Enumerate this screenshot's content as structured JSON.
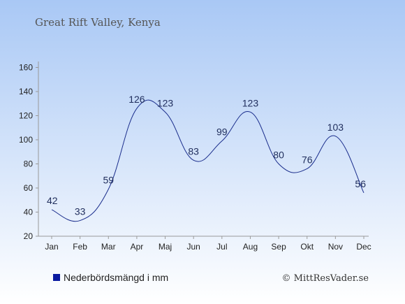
{
  "chart_data": {
    "type": "line",
    "title": "Great Rift Valley, Kenya",
    "categories": [
      "Jan",
      "Feb",
      "Mar",
      "Apr",
      "Maj",
      "Jun",
      "Jul",
      "Aug",
      "Sep",
      "Okt",
      "Nov",
      "Dec"
    ],
    "series": [
      {
        "name": "Nederbördsmängd i mm",
        "values": [
          42,
          33,
          59,
          126,
          123,
          83,
          99,
          123,
          80,
          76,
          103,
          56
        ]
      }
    ],
    "data_labels": [
      "42",
      "33",
      "59",
      "126",
      "123",
      "83",
      "99",
      "123",
      "80",
      "76",
      "103",
      "56"
    ],
    "ylim": [
      20,
      160
    ],
    "yticks": [
      20,
      40,
      60,
      80,
      100,
      120,
      140,
      160
    ],
    "ytick_labels": [
      "20",
      "40",
      "60",
      "80",
      "100",
      "120",
      "140",
      "160"
    ],
    "grid": false,
    "legend_position": "bottom-left",
    "line_color": "#1a2d8c",
    "legend_marker_color": "#0a1aa0",
    "background_top": "#a9c8f5",
    "background_bottom": "#ffffff"
  },
  "credit": "© MittResVader.se"
}
